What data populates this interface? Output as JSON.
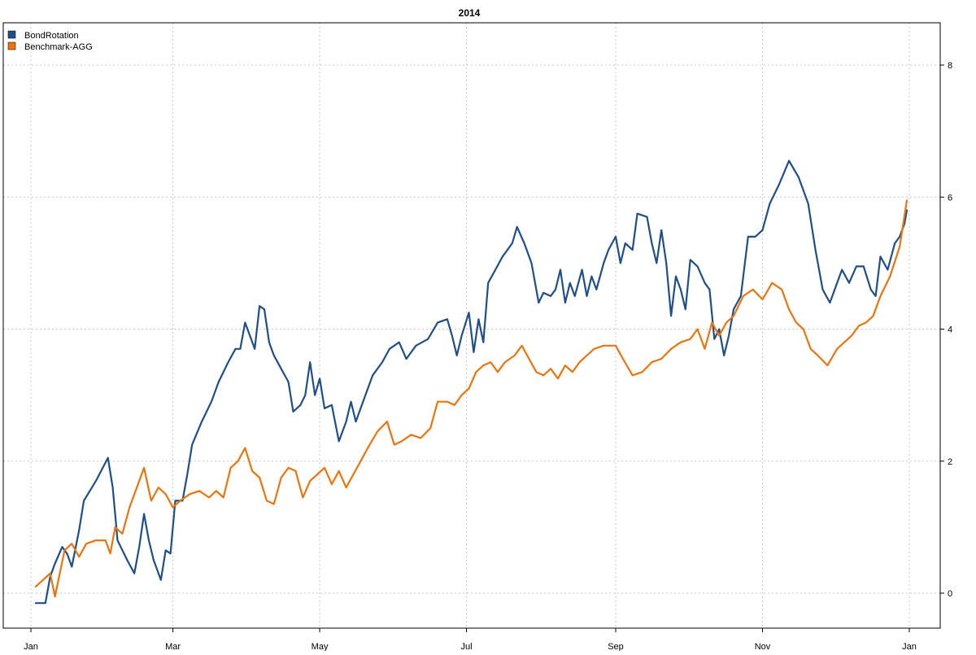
{
  "chart_data": {
    "type": "line",
    "title": "2014",
    "xlabel": "",
    "ylabel": "",
    "x_tick_labels": [
      "Jan",
      "Mar",
      "May",
      "Jul",
      "Sep",
      "Nov",
      "Jan"
    ],
    "x_tick_dates": [
      "2014-01-01",
      "2014-03-01",
      "2014-05-01",
      "2014-07-01",
      "2014-09-01",
      "2014-11-01",
      "2015-01-01"
    ],
    "y_ticks": [
      0,
      2,
      4,
      6,
      8
    ],
    "ylim": [
      -0.5,
      8.7
    ],
    "xlim": [
      "2014-01-01",
      "2015-01-01"
    ],
    "y_axis_side": "right",
    "grid": true,
    "legend_position": "top-left",
    "series": [
      {
        "name": "BondRotation",
        "color": "#1f4e89",
        "points": [
          [
            "2014-01-03",
            -0.15
          ],
          [
            "2014-01-07",
            -0.15
          ],
          [
            "2014-01-09",
            0.25
          ],
          [
            "2014-01-11",
            0.45
          ],
          [
            "2014-01-14",
            0.7
          ],
          [
            "2014-01-16",
            0.6
          ],
          [
            "2014-01-18",
            0.4
          ],
          [
            "2014-01-21",
            0.95
          ],
          [
            "2014-01-23",
            1.4
          ],
          [
            "2014-01-28",
            1.7
          ],
          [
            "2014-02-02",
            2.05
          ],
          [
            "2014-02-04",
            1.6
          ],
          [
            "2014-02-06",
            0.8
          ],
          [
            "2014-02-10",
            0.5
          ],
          [
            "2014-02-13",
            0.3
          ],
          [
            "2014-02-15",
            0.7
          ],
          [
            "2014-02-17",
            1.2
          ],
          [
            "2014-02-19",
            0.8
          ],
          [
            "2014-02-21",
            0.5
          ],
          [
            "2014-02-24",
            0.2
          ],
          [
            "2014-02-26",
            0.65
          ],
          [
            "2014-02-28",
            0.6
          ],
          [
            "2014-03-02",
            1.4
          ],
          [
            "2014-03-05",
            1.4
          ],
          [
            "2014-03-07",
            1.8
          ],
          [
            "2014-03-09",
            2.25
          ],
          [
            "2014-03-13",
            2.6
          ],
          [
            "2014-03-17",
            2.9
          ],
          [
            "2014-03-20",
            3.2
          ],
          [
            "2014-03-24",
            3.5
          ],
          [
            "2014-03-27",
            3.7
          ],
          [
            "2014-03-29",
            3.7
          ],
          [
            "2014-03-31",
            4.1
          ],
          [
            "2014-04-02",
            3.9
          ],
          [
            "2014-04-04",
            3.7
          ],
          [
            "2014-04-06",
            4.35
          ],
          [
            "2014-04-08",
            4.3
          ],
          [
            "2014-04-10",
            3.8
          ],
          [
            "2014-04-12",
            3.6
          ],
          [
            "2014-04-15",
            3.4
          ],
          [
            "2014-04-18",
            3.2
          ],
          [
            "2014-04-20",
            2.75
          ],
          [
            "2014-04-23",
            2.85
          ],
          [
            "2014-04-25",
            3.0
          ],
          [
            "2014-04-27",
            3.5
          ],
          [
            "2014-04-29",
            3.0
          ],
          [
            "2014-05-01",
            3.25
          ],
          [
            "2014-05-03",
            2.8
          ],
          [
            "2014-05-06",
            2.85
          ],
          [
            "2014-05-09",
            2.3
          ],
          [
            "2014-05-12",
            2.6
          ],
          [
            "2014-05-14",
            2.9
          ],
          [
            "2014-05-16",
            2.6
          ],
          [
            "2014-05-20",
            3.0
          ],
          [
            "2014-05-23",
            3.3
          ],
          [
            "2014-05-27",
            3.5
          ],
          [
            "2014-05-30",
            3.7
          ],
          [
            "2014-06-03",
            3.8
          ],
          [
            "2014-06-06",
            3.55
          ],
          [
            "2014-06-10",
            3.75
          ],
          [
            "2014-06-15",
            3.85
          ],
          [
            "2014-06-19",
            4.1
          ],
          [
            "2014-06-23",
            4.15
          ],
          [
            "2014-06-25",
            3.9
          ],
          [
            "2014-06-27",
            3.6
          ],
          [
            "2014-06-29",
            3.9
          ],
          [
            "2014-07-02",
            4.25
          ],
          [
            "2014-07-04",
            3.65
          ],
          [
            "2014-07-06",
            4.15
          ],
          [
            "2014-07-08",
            3.8
          ],
          [
            "2014-07-10",
            4.7
          ],
          [
            "2014-07-13",
            4.9
          ],
          [
            "2014-07-16",
            5.1
          ],
          [
            "2014-07-20",
            5.3
          ],
          [
            "2014-07-22",
            5.55
          ],
          [
            "2014-07-25",
            5.3
          ],
          [
            "2014-07-28",
            5.0
          ],
          [
            "2014-07-31",
            4.4
          ],
          [
            "2014-08-02",
            4.55
          ],
          [
            "2014-08-05",
            4.5
          ],
          [
            "2014-08-07",
            4.6
          ],
          [
            "2014-08-09",
            4.9
          ],
          [
            "2014-08-11",
            4.4
          ],
          [
            "2014-08-13",
            4.7
          ],
          [
            "2014-08-15",
            4.5
          ],
          [
            "2014-08-18",
            4.9
          ],
          [
            "2014-08-20",
            4.5
          ],
          [
            "2014-08-22",
            4.8
          ],
          [
            "2014-08-24",
            4.6
          ],
          [
            "2014-08-27",
            5.0
          ],
          [
            "2014-08-29",
            5.2
          ],
          [
            "2014-09-01",
            5.4
          ],
          [
            "2014-09-03",
            5.0
          ],
          [
            "2014-09-05",
            5.3
          ],
          [
            "2014-09-08",
            5.2
          ],
          [
            "2014-09-10",
            5.75
          ],
          [
            "2014-09-14",
            5.7
          ],
          [
            "2014-09-16",
            5.3
          ],
          [
            "2014-09-18",
            5.0
          ],
          [
            "2014-09-20",
            5.5
          ],
          [
            "2014-09-22",
            5.0
          ],
          [
            "2014-09-24",
            4.2
          ],
          [
            "2014-09-26",
            4.8
          ],
          [
            "2014-09-28",
            4.6
          ],
          [
            "2014-09-30",
            4.3
          ],
          [
            "2014-10-02",
            5.05
          ],
          [
            "2014-10-05",
            4.95
          ],
          [
            "2014-10-08",
            4.7
          ],
          [
            "2014-10-10",
            4.6
          ],
          [
            "2014-10-12",
            3.85
          ],
          [
            "2014-10-14",
            4.0
          ],
          [
            "2014-10-16",
            3.6
          ],
          [
            "2014-10-18",
            3.9
          ],
          [
            "2014-10-20",
            4.3
          ],
          [
            "2014-10-23",
            4.5
          ],
          [
            "2014-10-26",
            5.4
          ],
          [
            "2014-10-29",
            5.4
          ],
          [
            "2014-11-01",
            5.5
          ],
          [
            "2014-11-04",
            5.9
          ],
          [
            "2014-11-08",
            6.2
          ],
          [
            "2014-11-12",
            6.55
          ],
          [
            "2014-11-16",
            6.3
          ],
          [
            "2014-11-18",
            6.1
          ],
          [
            "2014-11-20",
            5.9
          ],
          [
            "2014-11-23",
            5.2
          ],
          [
            "2014-11-26",
            4.6
          ],
          [
            "2014-11-29",
            4.4
          ],
          [
            "2014-12-02",
            4.7
          ],
          [
            "2014-12-04",
            4.9
          ],
          [
            "2014-12-07",
            4.7
          ],
          [
            "2014-12-10",
            4.95
          ],
          [
            "2014-12-13",
            4.95
          ],
          [
            "2014-12-16",
            4.6
          ],
          [
            "2014-12-18",
            4.5
          ],
          [
            "2014-12-20",
            5.1
          ],
          [
            "2014-12-23",
            4.9
          ],
          [
            "2014-12-26",
            5.3
          ],
          [
            "2014-12-28",
            5.4
          ],
          [
            "2014-12-30",
            5.6
          ],
          [
            "2014-12-31",
            5.8
          ]
        ]
      },
      {
        "name": "Benchmark-AGG",
        "color": "#e8750e",
        "points": [
          [
            "2014-01-03",
            0.1
          ],
          [
            "2014-01-06",
            0.2
          ],
          [
            "2014-01-09",
            0.3
          ],
          [
            "2014-01-11",
            -0.05
          ],
          [
            "2014-01-13",
            0.3
          ],
          [
            "2014-01-15",
            0.65
          ],
          [
            "2014-01-18",
            0.75
          ],
          [
            "2014-01-21",
            0.55
          ],
          [
            "2014-01-24",
            0.75
          ],
          [
            "2014-01-28",
            0.8
          ],
          [
            "2014-02-01",
            0.8
          ],
          [
            "2014-02-03",
            0.6
          ],
          [
            "2014-02-05",
            1.0
          ],
          [
            "2014-02-08",
            0.9
          ],
          [
            "2014-02-11",
            1.3
          ],
          [
            "2014-02-14",
            1.6
          ],
          [
            "2014-02-17",
            1.9
          ],
          [
            "2014-02-20",
            1.4
          ],
          [
            "2014-02-23",
            1.6
          ],
          [
            "2014-02-26",
            1.5
          ],
          [
            "2014-03-01",
            1.3
          ],
          [
            "2014-03-04",
            1.4
          ],
          [
            "2014-03-08",
            1.5
          ],
          [
            "2014-03-12",
            1.55
          ],
          [
            "2014-03-16",
            1.45
          ],
          [
            "2014-03-19",
            1.55
          ],
          [
            "2014-03-22",
            1.45
          ],
          [
            "2014-03-25",
            1.9
          ],
          [
            "2014-03-28",
            2.0
          ],
          [
            "2014-03-31",
            2.2
          ],
          [
            "2014-04-03",
            1.85
          ],
          [
            "2014-04-06",
            1.75
          ],
          [
            "2014-04-09",
            1.4
          ],
          [
            "2014-04-12",
            1.35
          ],
          [
            "2014-04-15",
            1.75
          ],
          [
            "2014-04-18",
            1.9
          ],
          [
            "2014-04-21",
            1.85
          ],
          [
            "2014-04-24",
            1.45
          ],
          [
            "2014-04-27",
            1.7
          ],
          [
            "2014-04-30",
            1.8
          ],
          [
            "2014-05-03",
            1.9
          ],
          [
            "2014-05-06",
            1.65
          ],
          [
            "2014-05-09",
            1.85
          ],
          [
            "2014-05-12",
            1.6
          ],
          [
            "2014-05-15",
            1.8
          ],
          [
            "2014-05-18",
            2.0
          ],
          [
            "2014-05-21",
            2.2
          ],
          [
            "2014-05-25",
            2.45
          ],
          [
            "2014-05-29",
            2.6
          ],
          [
            "2014-06-01",
            2.25
          ],
          [
            "2014-06-04",
            2.3
          ],
          [
            "2014-06-08",
            2.4
          ],
          [
            "2014-06-12",
            2.35
          ],
          [
            "2014-06-16",
            2.5
          ],
          [
            "2014-06-19",
            2.9
          ],
          [
            "2014-06-23",
            2.9
          ],
          [
            "2014-06-26",
            2.85
          ],
          [
            "2014-06-29",
            3.0
          ],
          [
            "2014-07-02",
            3.1
          ],
          [
            "2014-07-05",
            3.35
          ],
          [
            "2014-07-08",
            3.45
          ],
          [
            "2014-07-11",
            3.5
          ],
          [
            "2014-07-14",
            3.35
          ],
          [
            "2014-07-17",
            3.5
          ],
          [
            "2014-07-21",
            3.6
          ],
          [
            "2014-07-24",
            3.75
          ],
          [
            "2014-07-27",
            3.55
          ],
          [
            "2014-07-30",
            3.35
          ],
          [
            "2014-08-02",
            3.3
          ],
          [
            "2014-08-05",
            3.4
          ],
          [
            "2014-08-08",
            3.25
          ],
          [
            "2014-08-11",
            3.45
          ],
          [
            "2014-08-14",
            3.35
          ],
          [
            "2014-08-17",
            3.5
          ],
          [
            "2014-08-20",
            3.6
          ],
          [
            "2014-08-23",
            3.7
          ],
          [
            "2014-08-27",
            3.75
          ],
          [
            "2014-09-01",
            3.75
          ],
          [
            "2014-09-04",
            3.55
          ],
          [
            "2014-09-08",
            3.3
          ],
          [
            "2014-09-12",
            3.35
          ],
          [
            "2014-09-16",
            3.5
          ],
          [
            "2014-09-20",
            3.55
          ],
          [
            "2014-09-24",
            3.7
          ],
          [
            "2014-09-28",
            3.8
          ],
          [
            "2014-10-02",
            3.85
          ],
          [
            "2014-10-05",
            4.0
          ],
          [
            "2014-10-08",
            3.7
          ],
          [
            "2014-10-11",
            4.1
          ],
          [
            "2014-10-14",
            3.9
          ],
          [
            "2014-10-17",
            4.1
          ],
          [
            "2014-10-20",
            4.2
          ],
          [
            "2014-10-24",
            4.5
          ],
          [
            "2014-10-28",
            4.6
          ],
          [
            "2014-11-01",
            4.45
          ],
          [
            "2014-11-05",
            4.7
          ],
          [
            "2014-11-09",
            4.6
          ],
          [
            "2014-11-12",
            4.3
          ],
          [
            "2014-11-15",
            4.1
          ],
          [
            "2014-11-18",
            4.0
          ],
          [
            "2014-11-21",
            3.7
          ],
          [
            "2014-11-24",
            3.6
          ],
          [
            "2014-11-28",
            3.45
          ],
          [
            "2014-12-02",
            3.7
          ],
          [
            "2014-12-05",
            3.8
          ],
          [
            "2014-12-08",
            3.9
          ],
          [
            "2014-12-11",
            4.05
          ],
          [
            "2014-12-14",
            4.1
          ],
          [
            "2014-12-17",
            4.2
          ],
          [
            "2014-12-20",
            4.5
          ],
          [
            "2014-12-24",
            4.8
          ],
          [
            "2014-12-28",
            5.25
          ],
          [
            "2014-12-31",
            5.95
          ]
        ]
      }
    ]
  }
}
